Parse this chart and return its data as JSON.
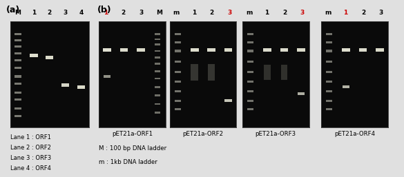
{
  "panel_a_label": "(a)",
  "panel_b_label": "(b)",
  "panel_a_lane_labels": [
    "M",
    "1",
    "2",
    "3",
    "4"
  ],
  "panel_b_gel1_labels": [
    "1",
    "2",
    "3",
    "M"
  ],
  "panel_b_gel1_red": [
    0
  ],
  "panel_b_gel2_labels": [
    "m",
    "1",
    "2",
    "3"
  ],
  "panel_b_gel2_red": [
    3
  ],
  "panel_b_gel3_labels": [
    "m",
    "1",
    "2",
    "3"
  ],
  "panel_b_gel3_red": [
    3
  ],
  "panel_b_gel4_labels": [
    "m",
    "1",
    "2",
    "3"
  ],
  "panel_b_gel4_red": [
    1
  ],
  "legend_lines": [
    "Lane 1 : ORF1",
    "Lane 2 : ORF2",
    "Lane 3 : ORF3",
    "Lane 4 : ORF4"
  ],
  "gel_titles": [
    "pET21a-ORF1",
    "pET21a-ORF2",
    "pET21a-ORF3",
    "pET21a-ORF4"
  ],
  "ladder_notes": [
    "M : 100 bp DNA ladder",
    "m : 1kb DNA ladder"
  ],
  "bg_color": "#e0e0e0",
  "gel_bg": "#0a0a0a",
  "text_color": "#000000",
  "red_color": "#cc0000"
}
